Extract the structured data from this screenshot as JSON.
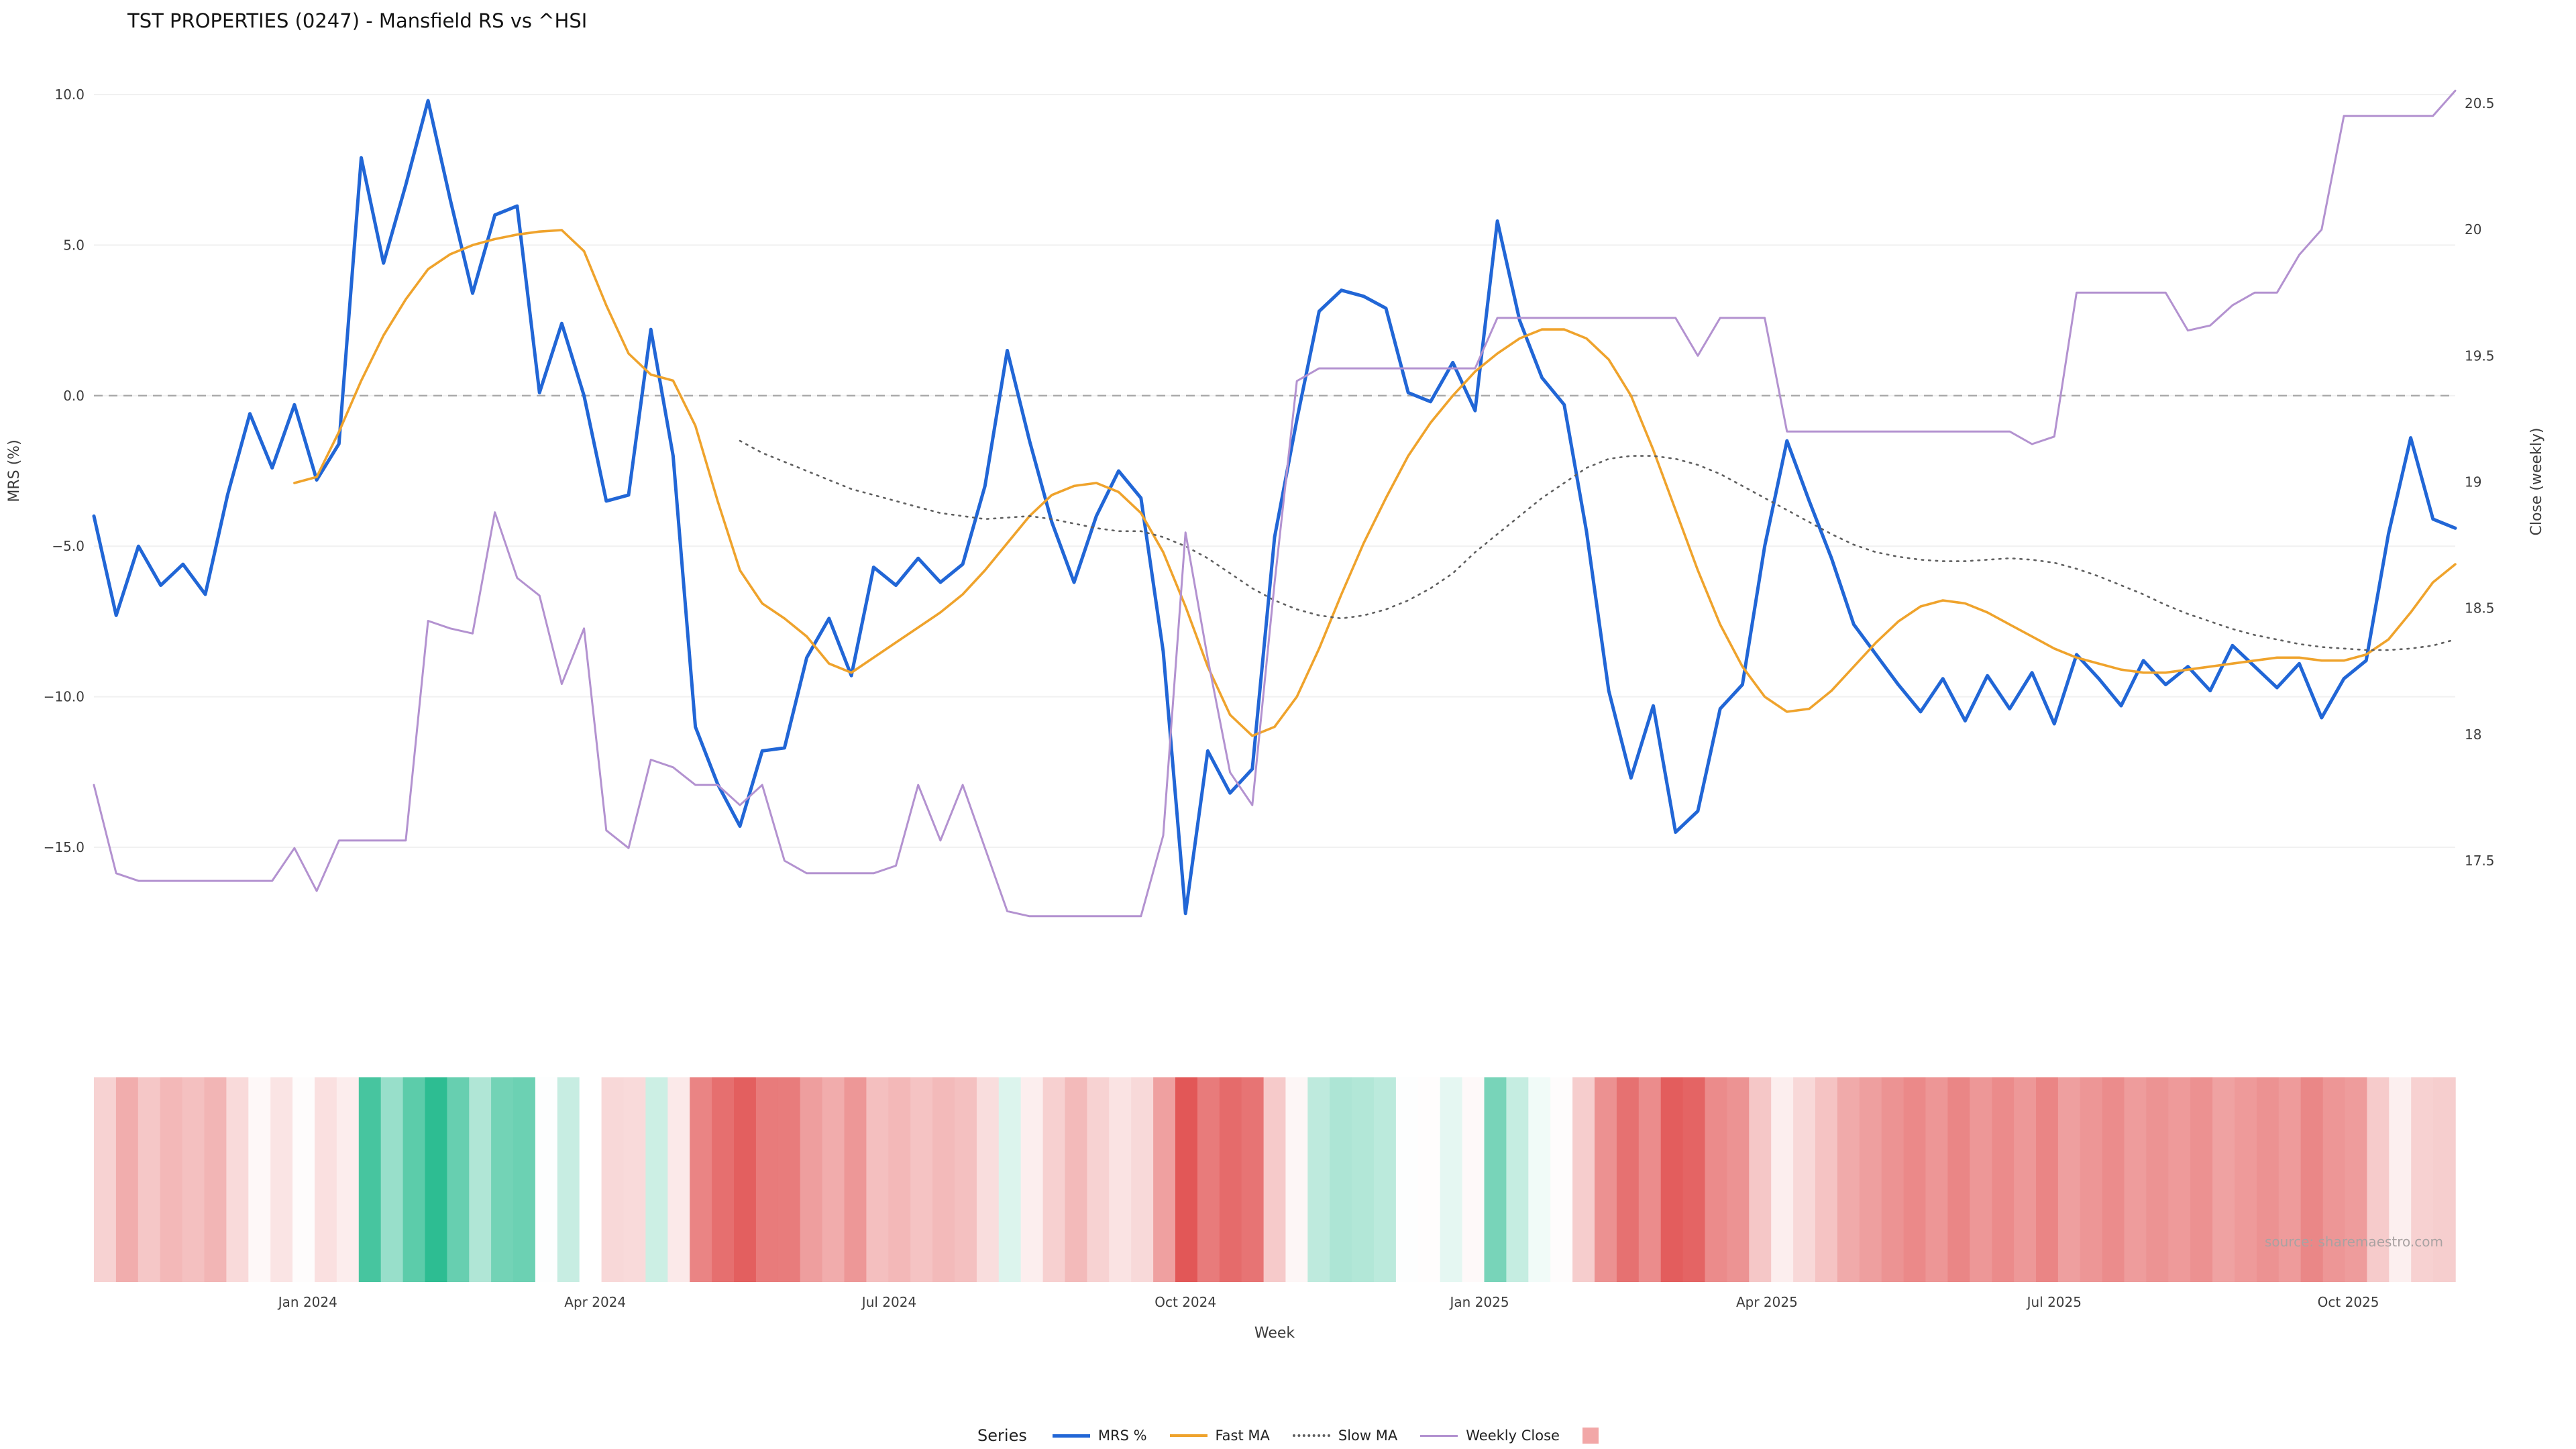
{
  "title": "TST PROPERTIES (0247) - Mansfield RS vs ^HSI",
  "source": "source: sharemaestro.com",
  "legend": {
    "title": "Series",
    "items": [
      {
        "label": "MRS %"
      },
      {
        "label": "Fast MA"
      },
      {
        "label": "Slow MA"
      },
      {
        "label": "Weekly Close"
      }
    ]
  },
  "colors": {
    "mrs": "#2166d6",
    "fast_ma": "#efa32c",
    "slow_ma": "#5f5f5f",
    "close": "#b392d0",
    "zero_line": "#a8a8a8",
    "grid": "#f1f1f1",
    "heat_legend": "#f2a7a7"
  },
  "chart_data": {
    "type": "line",
    "subtype": "multi-series weekly line chart with weekly heatmap strip",
    "x_label": "Week",
    "weeks": 107,
    "left_axis": {
      "label": "MRS (%)",
      "ticks": [
        {
          "label": "10.0",
          "value": 10
        },
        {
          "label": "5.0",
          "value": 5
        },
        {
          "label": "0.0",
          "value": 0
        },
        {
          "label": "−5.0",
          "value": -5
        },
        {
          "label": "−10.0",
          "value": -10
        },
        {
          "label": "−15.0",
          "value": -15
        }
      ],
      "range": [
        -18,
        10.5
      ]
    },
    "right_axis": {
      "label": "Close (weekly)",
      "ticks": [
        {
          "label": "20.5",
          "value": 20.5
        },
        {
          "label": "20",
          "value": 20
        },
        {
          "label": "19.5",
          "value": 19.5
        },
        {
          "label": "19",
          "value": 19
        },
        {
          "label": "18.5",
          "value": 18.5
        },
        {
          "label": "18",
          "value": 18
        },
        {
          "label": "17.5",
          "value": 17.5
        }
      ],
      "range": [
        17.2,
        20.6
      ]
    },
    "x_ticks": [
      {
        "label": "Jan 2024",
        "week": 9.6
      },
      {
        "label": "Apr 2024",
        "week": 22.5
      },
      {
        "label": "Jul 2024",
        "week": 35.7
      },
      {
        "label": "Oct 2024",
        "week": 49.0
      },
      {
        "label": "Jan 2025",
        "week": 62.2
      },
      {
        "label": "Apr 2025",
        "week": 75.1
      },
      {
        "label": "Jul 2025",
        "week": 88.0
      },
      {
        "label": "Oct 2025",
        "week": 101.2
      }
    ],
    "zero_line": 0,
    "series": [
      {
        "name": "MRS %",
        "axis": "left",
        "style": "solid",
        "color_key": "mrs",
        "values": [
          -4.0,
          -7.3,
          -5.0,
          -6.3,
          -5.6,
          -6.6,
          -3.3,
          -0.6,
          -2.4,
          -0.3,
          -2.8,
          -1.6,
          7.9,
          4.4,
          7.0,
          9.8,
          6.5,
          3.4,
          6.0,
          6.3,
          0.1,
          2.4,
          0.0,
          -3.5,
          -3.3,
          2.2,
          -2.0,
          -11.0,
          -12.9,
          -14.3,
          -11.8,
          -11.7,
          -8.7,
          -7.4,
          -9.3,
          -5.7,
          -6.3,
          -5.4,
          -6.2,
          -5.6,
          -3.0,
          1.5,
          -1.5,
          -4.2,
          -6.2,
          -4.0,
          -2.5,
          -3.4,
          -8.5,
          -17.2,
          -11.8,
          -13.2,
          -12.4,
          -4.7,
          -0.8,
          2.8,
          3.5,
          3.3,
          2.9,
          0.1,
          -0.2,
          1.1,
          -0.5,
          5.8,
          2.5,
          0.6,
          -0.3,
          -4.5,
          -9.8,
          -12.7,
          -10.3,
          -14.5,
          -13.8,
          -10.4,
          -9.6,
          -5.0,
          -1.5,
          -3.5,
          -5.4,
          -7.6,
          -8.6,
          -9.6,
          -10.5,
          -9.4,
          -10.8,
          -9.3,
          -10.4,
          -9.2,
          -10.9,
          -8.6,
          -9.4,
          -10.3,
          -8.8,
          -9.6,
          -9.0,
          -9.8,
          -8.3,
          -9.0,
          -9.7,
          -8.9,
          -10.7,
          -9.4,
          -8.8,
          -4.6,
          -1.4,
          -4.1,
          -4.4
        ]
      },
      {
        "name": "Fast MA",
        "axis": "left",
        "style": "solid",
        "color_key": "fast_ma",
        "values": [
          null,
          null,
          null,
          null,
          null,
          null,
          null,
          null,
          null,
          -2.9,
          -2.7,
          -1.2,
          0.5,
          2.0,
          3.2,
          4.2,
          4.7,
          5.0,
          5.2,
          5.35,
          5.45,
          5.5,
          4.8,
          3.0,
          1.4,
          0.7,
          0.5,
          -1.0,
          -3.5,
          -5.8,
          -6.9,
          -7.4,
          -8.0,
          -8.9,
          -9.2,
          -8.7,
          -8.2,
          -7.7,
          -7.2,
          -6.6,
          -5.8,
          -4.9,
          -4.0,
          -3.3,
          -3.0,
          -2.9,
          -3.2,
          -3.9,
          -5.2,
          -7.0,
          -9.0,
          -10.6,
          -11.3,
          -11.0,
          -10.0,
          -8.4,
          -6.6,
          -4.9,
          -3.4,
          -2.0,
          -0.9,
          0.0,
          0.8,
          1.4,
          1.9,
          2.2,
          2.2,
          1.9,
          1.2,
          0.0,
          -1.8,
          -3.8,
          -5.8,
          -7.6,
          -9.0,
          -10.0,
          -10.5,
          -10.4,
          -9.8,
          -9.0,
          -8.2,
          -7.5,
          -7.0,
          -6.8,
          -6.9,
          -7.2,
          -7.6,
          -8.0,
          -8.4,
          -8.7,
          -8.9,
          -9.1,
          -9.2,
          -9.2,
          -9.1,
          -9.0,
          -8.9,
          -8.8,
          -8.7,
          -8.7,
          -8.8,
          -8.8,
          -8.6,
          -8.1,
          -7.2,
          -6.2,
          -5.6
        ]
      },
      {
        "name": "Slow MA",
        "axis": "left",
        "style": "dotted",
        "color_key": "slow_ma",
        "values": [
          null,
          null,
          null,
          null,
          null,
          null,
          null,
          null,
          null,
          null,
          null,
          null,
          null,
          null,
          null,
          null,
          null,
          null,
          null,
          null,
          null,
          null,
          null,
          null,
          null,
          null,
          null,
          null,
          null,
          -1.5,
          -1.9,
          -2.2,
          -2.5,
          -2.8,
          -3.1,
          -3.3,
          -3.5,
          -3.7,
          -3.9,
          -4.0,
          -4.1,
          -4.05,
          -4.0,
          -4.1,
          -4.25,
          -4.4,
          -4.5,
          -4.5,
          -4.7,
          -5.0,
          -5.4,
          -5.9,
          -6.4,
          -6.8,
          -7.1,
          -7.3,
          -7.4,
          -7.3,
          -7.1,
          -6.8,
          -6.4,
          -5.9,
          -5.2,
          -4.6,
          -4.0,
          -3.4,
          -2.9,
          -2.4,
          -2.1,
          -2.0,
          -2.0,
          -2.1,
          -2.3,
          -2.6,
          -3.0,
          -3.4,
          -3.8,
          -4.2,
          -4.6,
          -4.95,
          -5.2,
          -5.35,
          -5.45,
          -5.5,
          -5.5,
          -5.45,
          -5.4,
          -5.45,
          -5.55,
          -5.75,
          -6.0,
          -6.3,
          -6.6,
          -6.95,
          -7.25,
          -7.5,
          -7.75,
          -7.95,
          -8.1,
          -8.25,
          -8.35,
          -8.4,
          -8.45,
          -8.45,
          -8.4,
          -8.3,
          -8.1
        ]
      },
      {
        "name": "Weekly Close",
        "axis": "right",
        "style": "solid",
        "color_key": "close",
        "values": [
          17.8,
          17.45,
          17.42,
          17.42,
          17.42,
          17.42,
          17.42,
          17.42,
          17.42,
          17.55,
          17.38,
          17.58,
          17.58,
          17.58,
          17.58,
          18.45,
          18.42,
          18.4,
          18.88,
          18.62,
          18.55,
          18.2,
          18.42,
          17.62,
          17.55,
          17.9,
          17.87,
          17.8,
          17.8,
          17.72,
          17.8,
          17.5,
          17.45,
          17.45,
          17.45,
          17.45,
          17.48,
          17.8,
          17.58,
          17.8,
          17.55,
          17.3,
          17.28,
          17.28,
          17.28,
          17.28,
          17.28,
          17.28,
          17.6,
          18.8,
          18.3,
          17.85,
          17.72,
          18.6,
          19.4,
          19.45,
          19.45,
          19.45,
          19.45,
          19.45,
          19.45,
          19.45,
          19.45,
          19.65,
          19.65,
          19.65,
          19.65,
          19.65,
          19.65,
          19.65,
          19.65,
          19.65,
          19.5,
          19.65,
          19.65,
          19.65,
          19.2,
          19.2,
          19.2,
          19.2,
          19.2,
          19.2,
          19.2,
          19.2,
          19.2,
          19.2,
          19.2,
          19.15,
          19.18,
          19.75,
          19.75,
          19.75,
          19.75,
          19.75,
          19.6,
          19.62,
          19.7,
          19.75,
          19.75,
          19.9,
          20.0,
          20.45,
          20.45,
          20.45,
          20.45,
          20.45,
          20.55
        ]
      }
    ],
    "heatmap": {
      "source_series": "MRS %",
      "positive_color": "#2dbd92",
      "negative_color": "#e25757",
      "positive_saturation": 9,
      "negative_saturation": 15
    }
  }
}
